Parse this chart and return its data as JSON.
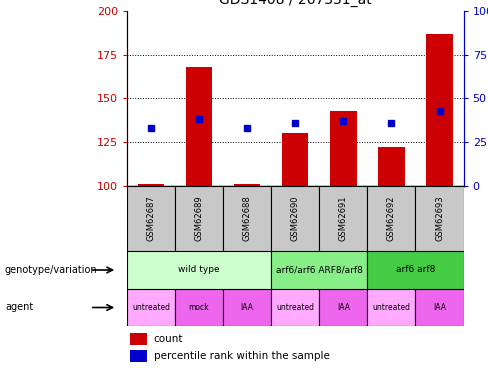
{
  "title": "GDS1408 / 267331_at",
  "samples": [
    "GSM62687",
    "GSM62689",
    "GSM62688",
    "GSM62690",
    "GSM62691",
    "GSM62692",
    "GSM62693"
  ],
  "count_values": [
    101,
    168,
    101,
    130,
    143,
    122,
    187
  ],
  "percentile_values": [
    33,
    38,
    33,
    36,
    37,
    36,
    43
  ],
  "ylim_left": [
    100,
    200
  ],
  "ylim_right": [
    0,
    100
  ],
  "yticks_left": [
    100,
    125,
    150,
    175,
    200
  ],
  "yticks_right": [
    0,
    25,
    50,
    75,
    100
  ],
  "bar_color": "#cc0000",
  "dot_color": "#0000cc",
  "sample_bg_color": "#c8c8c8",
  "genotype_groups": [
    {
      "label": "wild type",
      "start": 0,
      "end": 3,
      "color": "#ccffcc"
    },
    {
      "label": "arf6/arf6 ARF8/arf8",
      "start": 3,
      "end": 5,
      "color": "#88ee88"
    },
    {
      "label": "arf6 arf8",
      "start": 5,
      "end": 7,
      "color": "#44cc44"
    }
  ],
  "agent_labels": [
    "untreated",
    "mock",
    "IAA",
    "untreated",
    "IAA",
    "untreated",
    "IAA"
  ],
  "agent_colors": [
    "#ffaaff",
    "#ee66ee",
    "#ee66ee",
    "#ffaaff",
    "#ee66ee",
    "#ffaaff",
    "#ee66ee"
  ],
  "legend_count_label": "count",
  "legend_pct_label": "percentile rank within the sample",
  "xlabel_genotype": "genotype/variation",
  "xlabel_agent": "agent",
  "fig_width": 4.88,
  "fig_height": 3.75
}
